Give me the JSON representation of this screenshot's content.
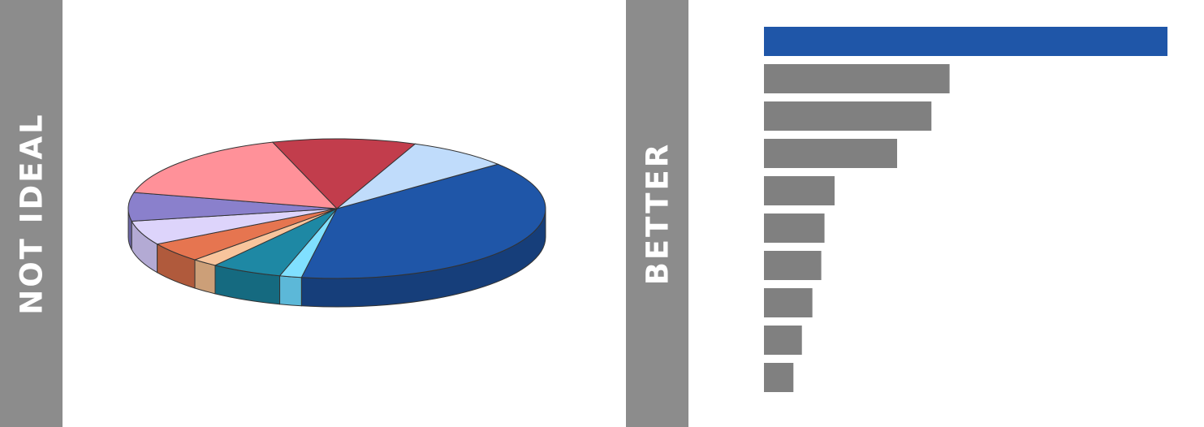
{
  "labels": {
    "left": "NOT IDEAL",
    "right": "BETTER"
  },
  "colors": {
    "panel": "#8c8c8c",
    "highlight": "#1f56a8",
    "bar": "#808080",
    "pie_tops": [
      "#1f56a8",
      "#80e0ff",
      "#1e88a4",
      "#f8c49c",
      "#e67550",
      "#ddd4fb",
      "#8a80cc",
      "#ff9199",
      "#c23d4c",
      "#c0dcfb"
    ],
    "pie_sides": [
      "#163e7a",
      "#5cb8d8",
      "#156a80",
      "#cc9f78",
      "#b05a3c",
      "#b3aad4",
      "#6c66a6",
      "#cc7379",
      "#9b2f3c",
      "#9ab4d4"
    ]
  },
  "chart_data": [
    {
      "type": "pie",
      "title": "",
      "values": [
        38.7,
        1.7,
        5.5,
        2.0,
        4.6,
        5.6,
        6.6,
        16.3,
        11.1,
        7.9
      ]
    },
    {
      "type": "bar",
      "orientation": "horizontal",
      "title": "",
      "xlabel": "",
      "ylabel": "",
      "values": [
        100,
        46,
        41.5,
        33,
        17.5,
        15,
        14.2,
        12,
        9.4,
        7.3
      ],
      "highlight_index": 0
    }
  ]
}
